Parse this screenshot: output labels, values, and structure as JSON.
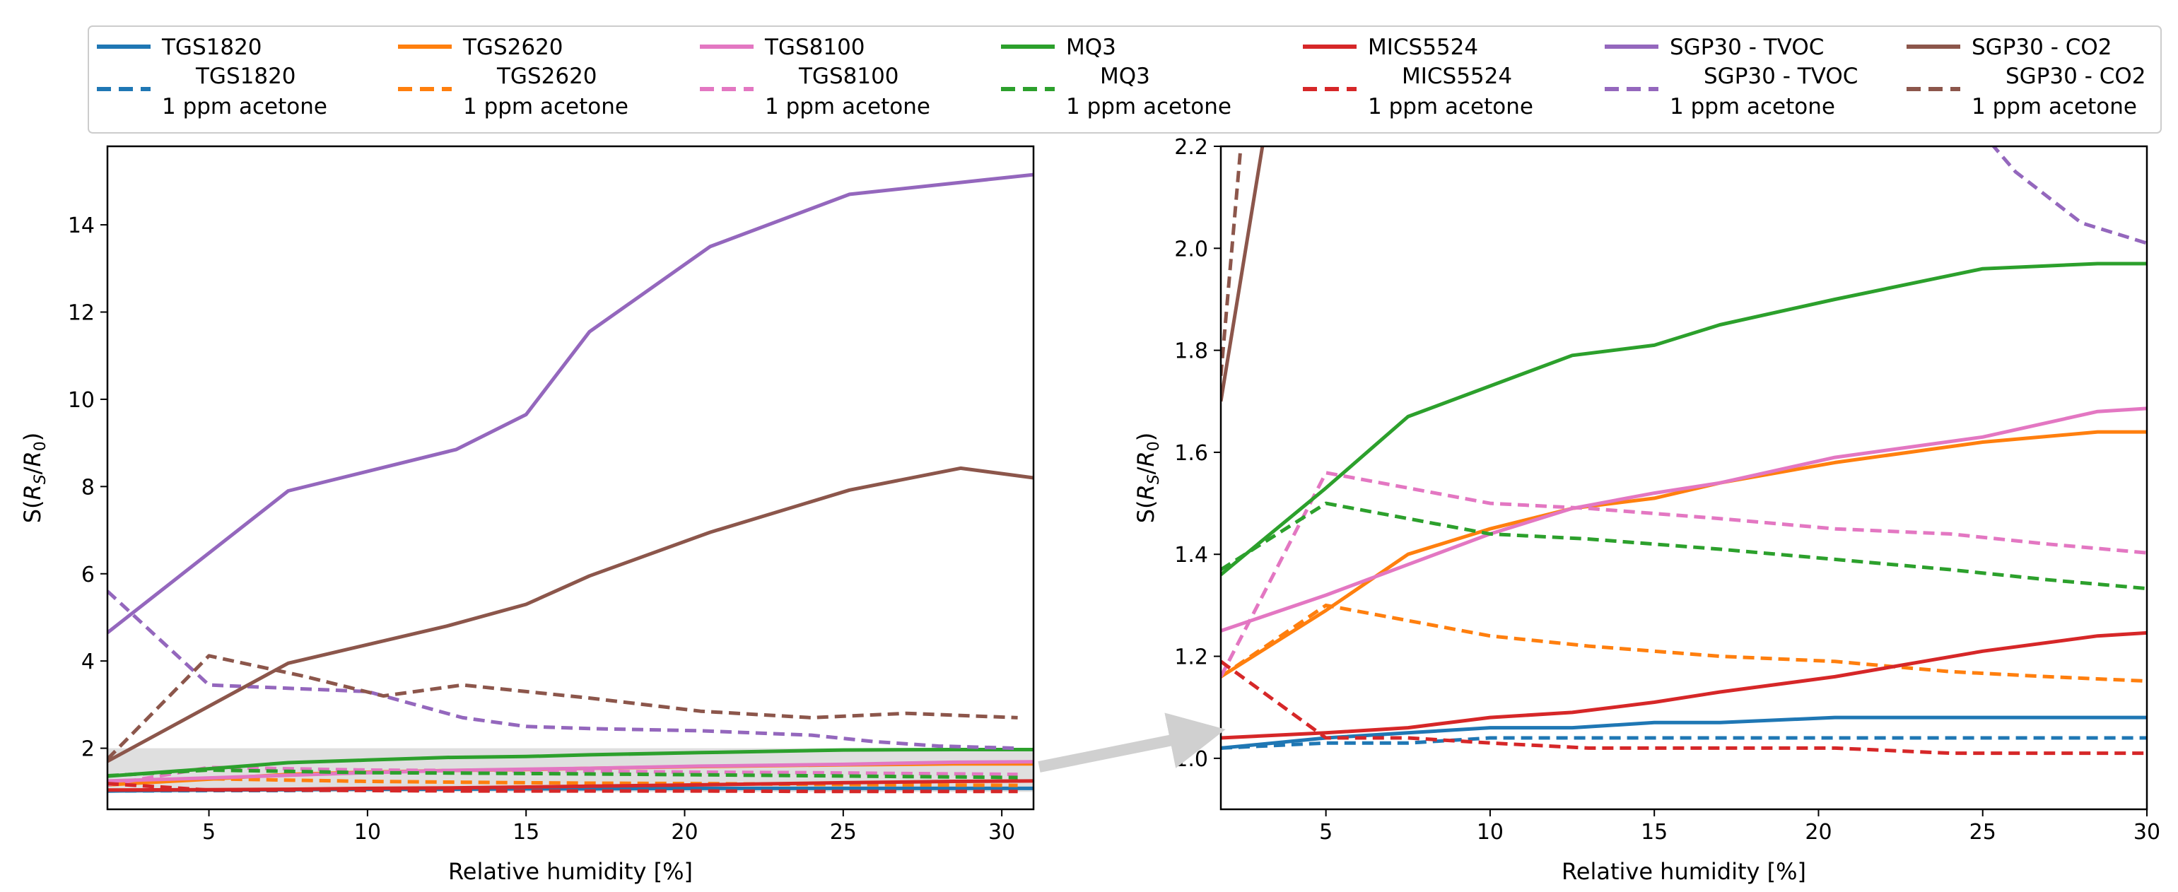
{
  "chart_data": [
    {
      "type": "line",
      "xlabel": "Relative humidity [%]",
      "ylabel": "S(R_S/R_0)",
      "xlim": [
        1.8,
        31
      ],
      "ylim": [
        0.6,
        15.8
      ],
      "xticks": [
        5,
        10,
        15,
        20,
        25,
        30
      ],
      "yticks": [
        2,
        4,
        6,
        8,
        10,
        12,
        14
      ],
      "grid": false,
      "shaded_region": {
        "x": [
          1.8,
          31
        ],
        "y": [
          1.0,
          2.0
        ],
        "color": "#d9d9d9"
      },
      "series": [
        {
          "name": "TGS1820",
          "color": "#1f77b4",
          "dash": false,
          "x": [
            1.8,
            5,
            7.5,
            10,
            12.5,
            15,
            17,
            20.5,
            25,
            28.5,
            31
          ],
          "y": [
            1.02,
            1.04,
            1.05,
            1.06,
            1.06,
            1.07,
            1.07,
            1.08,
            1.08,
            1.08,
            1.08
          ]
        },
        {
          "name": "TGS1820 1 ppm acetone",
          "color": "#1f77b4",
          "dash": true,
          "x": [
            1.8,
            5,
            7.5,
            10,
            13,
            15,
            17,
            20.5,
            24,
            27,
            30.5
          ],
          "y": [
            1.02,
            1.03,
            1.03,
            1.04,
            1.04,
            1.04,
            1.04,
            1.04,
            1.04,
            1.04,
            1.04
          ]
        },
        {
          "name": "TGS2620",
          "color": "#ff7f0e",
          "dash": false,
          "x": [
            1.8,
            5,
            7.5,
            10,
            12.5,
            15,
            17,
            20.5,
            25,
            28.5,
            31
          ],
          "y": [
            1.16,
            1.29,
            1.4,
            1.45,
            1.49,
            1.51,
            1.54,
            1.58,
            1.62,
            1.64,
            1.64
          ]
        },
        {
          "name": "TGS2620 1 ppm acetone",
          "color": "#ff7f0e",
          "dash": true,
          "x": [
            1.8,
            5,
            7.5,
            10,
            13,
            15,
            17,
            20.5,
            24,
            27,
            30.5
          ],
          "y": [
            1.16,
            1.3,
            1.27,
            1.24,
            1.22,
            1.21,
            1.2,
            1.19,
            1.17,
            1.16,
            1.15
          ]
        },
        {
          "name": "TGS8100",
          "color": "#e377c2",
          "dash": false,
          "x": [
            1.8,
            5,
            7.5,
            10,
            12.5,
            15,
            17,
            20.5,
            25,
            28.5,
            31
          ],
          "y": [
            1.25,
            1.32,
            1.38,
            1.44,
            1.49,
            1.52,
            1.54,
            1.59,
            1.63,
            1.68,
            1.69
          ]
        },
        {
          "name": "TGS8100 1 ppm acetone",
          "color": "#e377c2",
          "dash": true,
          "x": [
            1.8,
            5,
            7.5,
            10,
            13,
            15,
            17,
            20.5,
            24,
            27,
            30.5
          ],
          "y": [
            1.16,
            1.56,
            1.53,
            1.5,
            1.49,
            1.48,
            1.47,
            1.45,
            1.44,
            1.42,
            1.4
          ]
        },
        {
          "name": "MQ3",
          "color": "#2ca02c",
          "dash": false,
          "x": [
            1.8,
            5,
            7.5,
            10,
            12.5,
            15,
            17,
            20.5,
            25,
            28.5,
            31
          ],
          "y": [
            1.36,
            1.53,
            1.67,
            1.73,
            1.79,
            1.81,
            1.85,
            1.9,
            1.96,
            1.97,
            1.97
          ]
        },
        {
          "name": "MQ3 1 ppm acetone",
          "color": "#2ca02c",
          "dash": true,
          "x": [
            1.8,
            5,
            7.5,
            10,
            13,
            15,
            17,
            20.5,
            24,
            27,
            30.5
          ],
          "y": [
            1.37,
            1.5,
            1.47,
            1.44,
            1.43,
            1.42,
            1.41,
            1.39,
            1.37,
            1.35,
            1.33
          ]
        },
        {
          "name": "MICS5524",
          "color": "#d62728",
          "dash": false,
          "x": [
            1.8,
            5,
            7.5,
            10,
            12.5,
            15,
            17,
            20.5,
            25,
            28.5,
            31
          ],
          "y": [
            1.04,
            1.05,
            1.06,
            1.08,
            1.09,
            1.11,
            1.13,
            1.16,
            1.21,
            1.24,
            1.25
          ]
        },
        {
          "name": "MICS5524 1 ppm acetone",
          "color": "#d62728",
          "dash": true,
          "x": [
            1.8,
            5,
            7.5,
            10,
            13,
            15,
            17,
            20.5,
            24,
            27,
            30.5
          ],
          "y": [
            1.19,
            1.04,
            1.04,
            1.03,
            1.02,
            1.02,
            1.02,
            1.02,
            1.01,
            1.01,
            1.01
          ]
        },
        {
          "name": "SGP30 - TVOC",
          "color": "#9467bd",
          "dash": false,
          "x": [
            1.8,
            7.5,
            12.8,
            15,
            17,
            20.8,
            25.2,
            31
          ],
          "y": [
            4.65,
            7.9,
            8.85,
            9.65,
            11.55,
            13.5,
            14.7,
            15.15
          ]
        },
        {
          "name": "SGP30 - TVOC 1 ppm acetone",
          "color": "#9467bd",
          "dash": true,
          "x": [
            1.8,
            5,
            10,
            13,
            15,
            17,
            20.5,
            24,
            26,
            28,
            30.5
          ],
          "y": [
            5.6,
            3.45,
            3.3,
            2.7,
            2.5,
            2.45,
            2.4,
            2.3,
            2.15,
            2.05,
            2.0
          ]
        },
        {
          "name": "SGP30 - CO2",
          "color": "#8c564b",
          "dash": false,
          "x": [
            1.8,
            7.5,
            12.5,
            15,
            17,
            20.8,
            25.2,
            28.7,
            31
          ],
          "y": [
            1.7,
            3.95,
            4.8,
            5.3,
            5.95,
            6.95,
            7.92,
            8.42,
            8.2
          ]
        },
        {
          "name": "SGP30 - CO2 1 ppm acetone",
          "color": "#8c564b",
          "dash": true,
          "x": [
            1.8,
            5,
            8,
            10.5,
            13,
            15,
            17,
            20.5,
            24,
            27,
            30.5
          ],
          "y": [
            1.75,
            4.12,
            3.65,
            3.2,
            3.45,
            3.3,
            3.15,
            2.85,
            2.7,
            2.8,
            2.7
          ]
        }
      ]
    },
    {
      "type": "line",
      "xlabel": "Relative humidity [%]",
      "ylabel": "S(R_S/R_0)",
      "xlim": [
        1.8,
        30
      ],
      "ylim": [
        0.9,
        2.2
      ],
      "xticks": [
        5,
        10,
        15,
        20,
        25,
        30
      ],
      "yticks": [
        1.0,
        1.2,
        1.4,
        1.6,
        1.8,
        2.0,
        2.2
      ],
      "ytick_labels": [
        "1.0",
        "1.2",
        "1.4",
        "1.6",
        "1.8",
        "2.0",
        "2.2"
      ],
      "grid": false,
      "series_ref": "same series as left panel (zoomed view of shaded region)"
    }
  ],
  "legend": {
    "placement": "top",
    "entries": [
      {
        "label": "TGS1820",
        "sublabel": "",
        "color": "#1f77b4",
        "dash": false
      },
      {
        "label": "TGS2620",
        "sublabel": "",
        "color": "#ff7f0e",
        "dash": false
      },
      {
        "label": "TGS8100",
        "sublabel": "",
        "color": "#e377c2",
        "dash": false
      },
      {
        "label": "MQ3",
        "sublabel": "",
        "color": "#2ca02c",
        "dash": false
      },
      {
        "label": "MICS5524",
        "sublabel": "",
        "color": "#d62728",
        "dash": false
      },
      {
        "label": "SGP30 - TVOC",
        "sublabel": "",
        "color": "#9467bd",
        "dash": false
      },
      {
        "label": "SGP30 - CO2",
        "sublabel": "",
        "color": "#8c564b",
        "dash": false
      },
      {
        "label": "TGS1820",
        "sublabel": "1 ppm acetone",
        "color": "#1f77b4",
        "dash": true
      },
      {
        "label": "TGS2620",
        "sublabel": "1 ppm acetone",
        "color": "#ff7f0e",
        "dash": true
      },
      {
        "label": "TGS8100",
        "sublabel": "1 ppm acetone",
        "color": "#e377c2",
        "dash": true
      },
      {
        "label": "MQ3",
        "sublabel": "1 ppm acetone",
        "color": "#2ca02c",
        "dash": true
      },
      {
        "label": "MICS5524",
        "sublabel": "1 ppm acetone",
        "color": "#d62728",
        "dash": true
      },
      {
        "label": "SGP30 - TVOC",
        "sublabel": "1 ppm acetone",
        "color": "#9467bd",
        "dash": true
      },
      {
        "label": "SGP30 - CO2",
        "sublabel": "1 ppm acetone",
        "color": "#8c564b",
        "dash": true
      }
    ]
  },
  "zoom_arrow": {
    "color": "#d0d0d0"
  }
}
